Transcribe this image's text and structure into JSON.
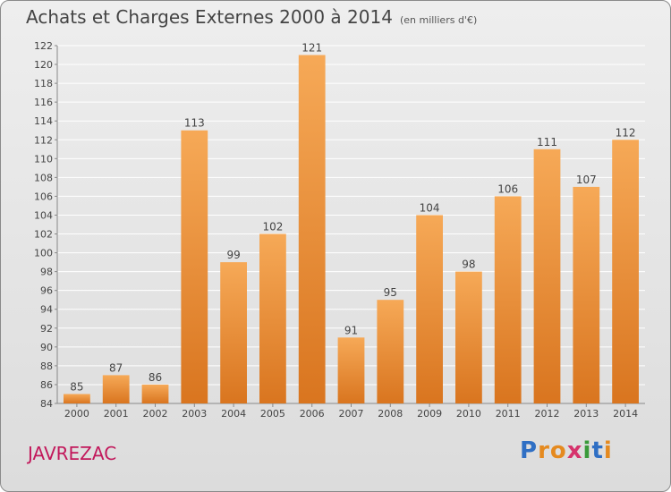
{
  "header": {
    "title": "Achats et Charges Externes 2000 à 2014",
    "subtitle": "(en milliers d'€)"
  },
  "commune": "JAVREZAC",
  "logo": {
    "letters": [
      "P",
      "r",
      "o",
      "x",
      "i",
      "t",
      "i"
    ],
    "colors": [
      "#2f6fc4",
      "#e58a1f",
      "#e58a1f",
      "#d6336c",
      "#3a9a3a",
      "#2f6fc4",
      "#e58a1f"
    ]
  },
  "colors": {
    "bar_top": "#f6a957",
    "bar_bottom": "#d9751f",
    "grid": "#ffffff",
    "text": "#444444"
  },
  "chart_data": {
    "type": "bar",
    "categories": [
      "2000",
      "2001",
      "2002",
      "2003",
      "2004",
      "2005",
      "2006",
      "2007",
      "2008",
      "2009",
      "2010",
      "2011",
      "2012",
      "2013",
      "2014"
    ],
    "values": [
      85,
      87,
      86,
      113,
      99,
      102,
      121,
      91,
      95,
      104,
      98,
      106,
      111,
      107,
      112
    ],
    "ylim": [
      84,
      122
    ],
    "yticks": [
      84,
      86,
      88,
      90,
      92,
      94,
      96,
      98,
      100,
      102,
      104,
      106,
      108,
      110,
      112,
      114,
      116,
      118,
      120,
      122
    ],
    "grid": true,
    "title": "Achats et Charges Externes 2000 à 2014",
    "xlabel": "",
    "ylabel": ""
  }
}
